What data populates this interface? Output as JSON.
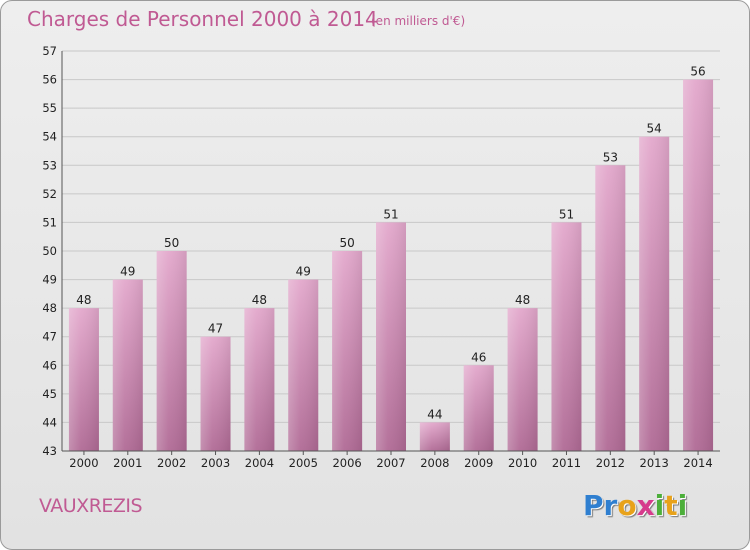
{
  "header": {
    "title": "Charges de Personnel 2000 à 2014",
    "subtitle": "(en milliers d'€)"
  },
  "footer": {
    "commune": "VAUXREZIS",
    "logo_letters": [
      {
        "char": "P",
        "color": "#2f7fd0"
      },
      {
        "char": "r",
        "color": "#2f7fd0"
      },
      {
        "char": "o",
        "color": "#e8a21a"
      },
      {
        "char": "x",
        "color": "#d63a8c"
      },
      {
        "char": "i",
        "color": "#4caf3a"
      },
      {
        "char": "t",
        "color": "#e8a21a"
      },
      {
        "char": "i",
        "color": "#4caf3a"
      }
    ]
  },
  "chart_data": {
    "type": "bar",
    "title": "Charges de Personnel 2000 à 2014",
    "subtitle": "(en milliers d'€)",
    "categories": [
      "2000",
      "2001",
      "2002",
      "2003",
      "2004",
      "2005",
      "2006",
      "2007",
      "2008",
      "2009",
      "2010",
      "2011",
      "2012",
      "2013",
      "2014"
    ],
    "values": [
      48,
      49,
      50,
      47,
      48,
      49,
      50,
      51,
      44,
      46,
      48,
      51,
      53,
      54,
      56
    ],
    "ylim": [
      43,
      57
    ],
    "yticks": [
      43,
      44,
      45,
      46,
      47,
      48,
      49,
      50,
      51,
      52,
      53,
      54,
      55,
      56,
      57
    ],
    "grid": true,
    "bar_color": "#d98fbd"
  }
}
